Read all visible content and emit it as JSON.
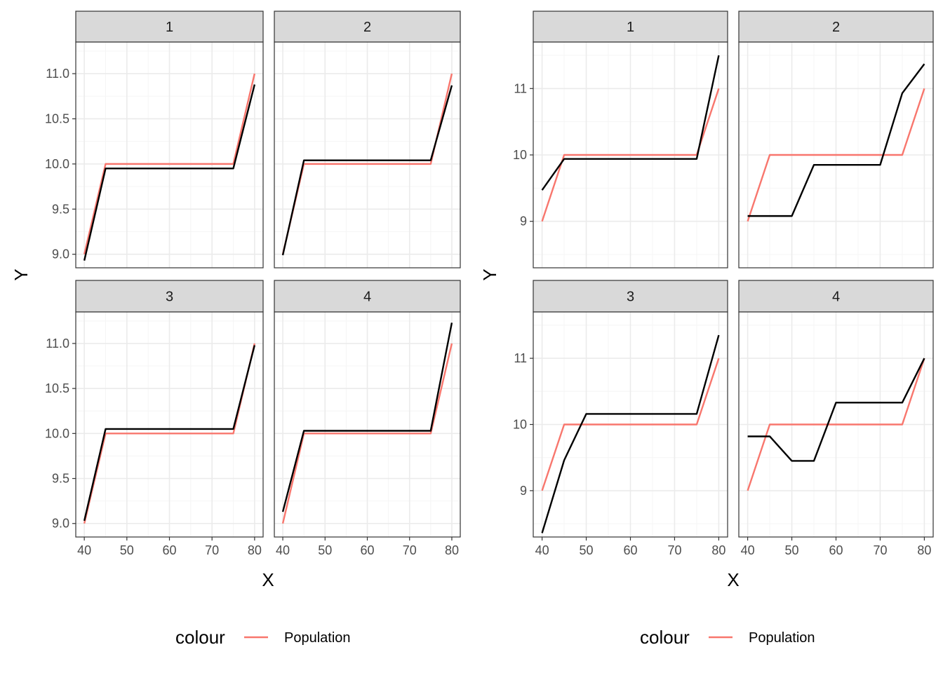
{
  "colors": {
    "population": "#F8766D",
    "sample": "#000000",
    "strip_fill": "#D9D9D9",
    "grid_major": "#EBEBEB",
    "grid_minor": "#F5F5F5",
    "border": "#333333"
  },
  "chart_data": [
    {
      "type": "line",
      "facet_layout": "2x2",
      "xlabel": "X",
      "ylabel": "Y",
      "xlim": [
        38,
        82
      ],
      "ylim": [
        8.85,
        11.35
      ],
      "x_ticks": [
        40,
        50,
        60,
        70,
        80
      ],
      "x_tick_labels": [
        "40",
        "50",
        "60",
        "70",
        "80"
      ],
      "y_ticks": [
        9.0,
        9.5,
        10.0,
        10.5,
        11.0
      ],
      "y_tick_labels": [
        "9.0",
        "9.5",
        "10.0",
        "10.5",
        "11.0"
      ],
      "grid": true,
      "legend": {
        "title": "colour",
        "entries": [
          "Population"
        ],
        "placement": "bottom"
      },
      "panels": [
        {
          "strip": "1",
          "series": [
            {
              "name": "Population",
              "x": [
                40,
                45,
                75,
                80
              ],
              "y": [
                9.0,
                10.0,
                10.0,
                11.0
              ]
            },
            {
              "x": [
                40,
                45,
                75,
                80
              ],
              "y": [
                8.93,
                9.95,
                9.95,
                10.88
              ]
            }
          ]
        },
        {
          "strip": "2",
          "series": [
            {
              "name": "Population",
              "x": [
                40,
                45,
                75,
                80
              ],
              "y": [
                9.0,
                10.0,
                10.0,
                11.0
              ]
            },
            {
              "x": [
                40,
                45,
                75,
                80
              ],
              "y": [
                8.99,
                10.04,
                10.04,
                10.87
              ]
            }
          ]
        },
        {
          "strip": "3",
          "series": [
            {
              "name": "Population",
              "x": [
                40,
                45,
                75,
                80
              ],
              "y": [
                9.0,
                10.0,
                10.0,
                11.0
              ]
            },
            {
              "x": [
                40,
                45,
                75,
                80
              ],
              "y": [
                9.03,
                10.05,
                10.05,
                10.98
              ]
            }
          ]
        },
        {
          "strip": "4",
          "series": [
            {
              "name": "Population",
              "x": [
                40,
                45,
                75,
                80
              ],
              "y": [
                9.0,
                10.0,
                10.0,
                11.0
              ]
            },
            {
              "x": [
                40,
                45,
                75,
                80
              ],
              "y": [
                9.13,
                10.03,
                10.03,
                11.23
              ]
            }
          ]
        }
      ]
    },
    {
      "type": "line",
      "facet_layout": "2x2",
      "xlabel": "X",
      "ylabel": "Y",
      "xlim": [
        38,
        82
      ],
      "ylim": [
        8.3,
        11.7
      ],
      "x_ticks": [
        40,
        50,
        60,
        70,
        80
      ],
      "x_tick_labels": [
        "40",
        "50",
        "60",
        "70",
        "80"
      ],
      "y_ticks": [
        9,
        10,
        11
      ],
      "y_tick_labels": [
        "9",
        "10",
        "11"
      ],
      "grid": true,
      "legend": {
        "title": "colour",
        "entries": [
          "Population"
        ],
        "placement": "bottom"
      },
      "panels": [
        {
          "strip": "1",
          "series": [
            {
              "name": "Population",
              "x": [
                40,
                45,
                75,
                80
              ],
              "y": [
                9.0,
                10.0,
                10.0,
                11.0
              ]
            },
            {
              "x": [
                40,
                45,
                75,
                80
              ],
              "y": [
                9.47,
                9.94,
                9.94,
                11.5
              ]
            }
          ]
        },
        {
          "strip": "2",
          "series": [
            {
              "name": "Population",
              "x": [
                40,
                45,
                75,
                80
              ],
              "y": [
                9.0,
                10.0,
                10.0,
                11.0
              ]
            },
            {
              "x": [
                40,
                50,
                55,
                70,
                75,
                80
              ],
              "y": [
                9.08,
                9.08,
                9.85,
                9.85,
                10.93,
                11.37
              ]
            }
          ]
        },
        {
          "strip": "3",
          "series": [
            {
              "name": "Population",
              "x": [
                40,
                45,
                75,
                80
              ],
              "y": [
                9.0,
                10.0,
                10.0,
                11.0
              ]
            },
            {
              "x": [
                40,
                45,
                50,
                75,
                80
              ],
              "y": [
                8.36,
                9.46,
                10.16,
                10.16,
                11.35
              ]
            }
          ]
        },
        {
          "strip": "4",
          "series": [
            {
              "name": "Population",
              "x": [
                40,
                45,
                75,
                80
              ],
              "y": [
                9.0,
                10.0,
                10.0,
                11.0
              ]
            },
            {
              "x": [
                40,
                45,
                50,
                55,
                60,
                75,
                80
              ],
              "y": [
                9.82,
                9.82,
                9.45,
                9.45,
                10.33,
                10.33,
                11.0
              ]
            }
          ]
        }
      ]
    }
  ]
}
